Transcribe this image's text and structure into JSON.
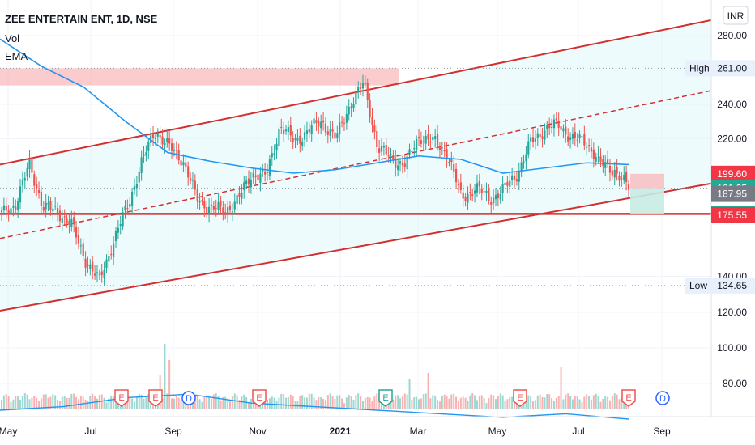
{
  "header": {
    "symbol_line": "ZEE ENTERTAIN ENT, 1D, NSE",
    "indicator_vol": "Vol",
    "indicator_ema": "EMA"
  },
  "currency_label": "INR",
  "chart_data": {
    "type": "candlestick",
    "title": "ZEE ENTERTAIN ENT, 1D, NSE",
    "x_ticks": [
      "May",
      "Jul",
      "Sep",
      "Nov",
      "2021",
      "Mar",
      "May",
      "Jul",
      "Sep"
    ],
    "y_ticks": [
      280.0,
      240.0,
      220.0,
      140.0,
      120.0,
      100.0,
      80.0
    ],
    "ylim": [
      58,
      292
    ],
    "price_path": [
      [
        "May",
        176
      ],
      [
        "Jun",
        182
      ],
      [
        "Jun",
        205
      ],
      [
        "Jun",
        180
      ],
      [
        "Jul",
        178
      ],
      [
        "Jul",
        170
      ],
      [
        "Aug",
        150
      ],
      [
        "Aug",
        137
      ],
      [
        "Aug",
        160
      ],
      [
        "Aug",
        180
      ],
      [
        "Sep",
        205
      ],
      [
        "Sep",
        225
      ],
      [
        "Sep",
        215
      ],
      [
        "Oct",
        208
      ],
      [
        "Oct",
        185
      ],
      [
        "Oct",
        180
      ],
      [
        "Nov",
        178
      ],
      [
        "Nov",
        185
      ],
      [
        "Nov",
        200
      ],
      [
        "Dec",
        198
      ],
      [
        "Dec",
        228
      ],
      [
        "Dec",
        218
      ],
      [
        "2021",
        225
      ],
      [
        "Jan",
        230
      ],
      [
        "Feb",
        220
      ],
      [
        "Feb",
        240
      ],
      [
        "Feb",
        252
      ],
      [
        "Feb",
        215
      ],
      [
        "Mar",
        208
      ],
      [
        "Mar",
        205
      ],
      [
        "Mar",
        222
      ],
      [
        "Mar",
        218
      ],
      [
        "Apr",
        212
      ],
      [
        "Apr",
        185
      ],
      [
        "Apr",
        192
      ],
      [
        "May",
        185
      ],
      [
        "May",
        190
      ],
      [
        "May",
        200
      ],
      [
        "Jun",
        218
      ],
      [
        "Jun",
        226
      ],
      [
        "Jun",
        228
      ],
      [
        "Jul",
        220
      ],
      [
        "Jul",
        218
      ],
      [
        "Jul",
        205
      ],
      [
        "Aug",
        202
      ],
      [
        "Aug",
        191
      ]
    ],
    "ema_path": [
      [
        "May",
        278
      ],
      [
        "Jun",
        262
      ],
      [
        "Jul",
        250
      ],
      [
        "Aug",
        230
      ],
      [
        "Sep",
        212
      ],
      [
        "Oct",
        207
      ],
      [
        "Nov",
        203
      ],
      [
        "Dec",
        200
      ],
      [
        "2021",
        202
      ],
      [
        "Feb",
        206
      ],
      [
        "Mar",
        210
      ],
      [
        "Apr",
        208
      ],
      [
        "May",
        200
      ],
      [
        "Jun",
        203
      ],
      [
        "Jul",
        206
      ],
      [
        "Aug",
        205
      ]
    ],
    "volume_path_ema": [
      [
        "May",
        65
      ],
      [
        "Jul",
        67
      ],
      [
        "Aug",
        72
      ],
      [
        "Sep",
        74
      ],
      [
        "Oct",
        69
      ],
      [
        "Nov",
        67
      ],
      [
        "2021",
        65
      ],
      [
        "Mar",
        63
      ],
      [
        "May",
        61
      ],
      [
        "Jul",
        63
      ],
      [
        "Aug",
        60
      ]
    ],
    "price_labels": [
      {
        "label": "",
        "value": "261.00",
        "prefix": "High",
        "color": "#e8f0fb",
        "text_color": "#131722"
      },
      {
        "label": "",
        "value": "199.60",
        "color": "#f23645",
        "text_color": "#ffffff"
      },
      {
        "label": "",
        "value": "191.25",
        "color": "#22ab94",
        "text_color": "#ffffff"
      },
      {
        "label": "",
        "value": "187.95",
        "color": "#787b86",
        "text_color": "#ffffff"
      },
      {
        "label": "",
        "value": "176.30",
        "color": "#22ab94",
        "text_color": "#ffffff"
      },
      {
        "label": "",
        "value": "175.55",
        "color": "#f23645",
        "text_color": "#ffffff"
      },
      {
        "label": "",
        "value": "134.65",
        "prefix": "Low",
        "color": "#e8f0fb",
        "text_color": "#131722"
      }
    ],
    "horizontal_level": 176.3,
    "channel": {
      "upper": [
        [
          "May",
          205
        ],
        [
          "Sep",
          289
        ]
      ],
      "lower": [
        [
          "May",
          120
        ],
        [
          "Sep",
          194
        ]
      ],
      "mid_dashed": [
        [
          "May",
          162
        ],
        [
          "Sep",
          248
        ]
      ]
    },
    "event_markers": [
      {
        "label": "E",
        "x": "Aug"
      },
      {
        "label": "E",
        "x": "Aug"
      },
      {
        "label": "D",
        "x": "Sep"
      },
      {
        "label": "E",
        "x": "Nov"
      },
      {
        "label": "E",
        "x": "Feb"
      },
      {
        "label": "E",
        "x": "May"
      },
      {
        "label": "E",
        "x": "Aug"
      },
      {
        "label": "D",
        "x": "Aug"
      }
    ],
    "colors": {
      "up": "#26a69a",
      "down": "#ef5350",
      "ema": "#2196f3",
      "channel": "#d32f2f",
      "channel_fill": "#e0f7fa",
      "high_zone": "#f8bbbc"
    }
  }
}
